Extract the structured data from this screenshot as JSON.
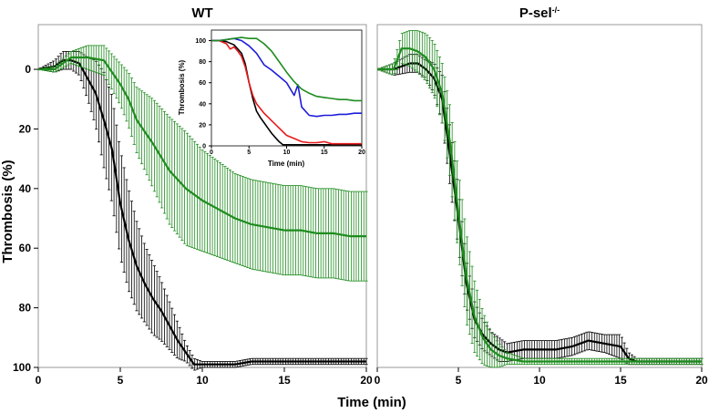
{
  "figure": {
    "ylabel": "Thrombosis (%)",
    "xlabel": "Time (min)"
  },
  "chart_data": [
    {
      "type": "line",
      "title": "WT",
      "xlabel": "Time (min)",
      "ylabel": "Thrombosis (%)",
      "xlim": [
        0,
        20
      ],
      "ylim": [
        100,
        -15
      ],
      "y_inverted": true,
      "xticks": [
        0,
        5,
        10,
        15,
        20
      ],
      "yticks": [
        0,
        20,
        40,
        60,
        80,
        100
      ],
      "series": [
        {
          "name": "black",
          "color": "#000000",
          "x": [
            0,
            1,
            1.5,
            2,
            2.5,
            3,
            3.5,
            4,
            4.5,
            5,
            5.5,
            6,
            6.5,
            7,
            7.5,
            8,
            8.5,
            9,
            9.5,
            10,
            11,
            12,
            13,
            14,
            15,
            16,
            17,
            18,
            19,
            20
          ],
          "y": [
            0,
            -1,
            -3,
            -3,
            -2,
            3,
            8,
            17,
            27,
            45,
            57,
            66,
            72,
            77,
            81,
            86,
            91,
            95,
            99,
            99,
            99,
            99,
            98,
            98,
            98,
            98,
            98,
            98,
            98,
            98
          ],
          "err": [
            0,
            2,
            3,
            3,
            4,
            7,
            11,
            16,
            18,
            18,
            17,
            15,
            13,
            12,
            10,
            8,
            6,
            3,
            2,
            1,
            1,
            1,
            1,
            1,
            1,
            1,
            1,
            1,
            1,
            1
          ]
        },
        {
          "name": "green",
          "color": "#1e8c1e",
          "x": [
            0,
            1,
            2,
            3,
            4,
            5,
            5.5,
            6,
            7,
            8,
            9,
            10,
            11,
            12,
            13,
            14,
            15,
            16,
            17,
            18,
            19,
            20
          ],
          "y": [
            0,
            0,
            -4,
            -4,
            -3,
            5,
            10,
            17,
            25,
            34,
            40,
            44,
            47,
            50,
            52,
            53,
            54,
            54,
            55,
            55,
            56,
            56
          ],
          "err": [
            0,
            1,
            2,
            4,
            5,
            7,
            9,
            11,
            15,
            18,
            19,
            17,
            16,
            15,
            15,
            15,
            15,
            15,
            15,
            15,
            15,
            15
          ]
        }
      ]
    },
    {
      "type": "line",
      "title": "P-sel",
      "title_sup": "-/-",
      "xlabel": "Time (min)",
      "ylabel": "",
      "xlim": [
        0,
        20
      ],
      "ylim": [
        100,
        -15
      ],
      "y_inverted": true,
      "xticks": [
        0,
        5,
        10,
        15,
        20
      ],
      "yticks": [],
      "series": [
        {
          "name": "black",
          "color": "#000000",
          "x": [
            0,
            1,
            2,
            2.5,
            3,
            3.5,
            4,
            4.5,
            5,
            5.5,
            6,
            6.5,
            7,
            7.5,
            8,
            9,
            10,
            11,
            12,
            13,
            14,
            15,
            15.5,
            16,
            17,
            18,
            19,
            20
          ],
          "y": [
            0,
            0,
            -2,
            -2,
            0,
            3,
            10,
            30,
            50,
            72,
            84,
            89,
            92,
            94,
            95,
            94,
            94,
            94,
            93,
            91,
            92,
            93,
            97,
            98,
            98,
            98,
            98,
            98
          ],
          "err": [
            0,
            2,
            3,
            3,
            3,
            5,
            8,
            10,
            10,
            8,
            6,
            5,
            4,
            4,
            3,
            3,
            3,
            3,
            3,
            3,
            3,
            4,
            2,
            1,
            1,
            1,
            1,
            1
          ]
        },
        {
          "name": "green",
          "color": "#1e8c1e",
          "x": [
            0,
            1,
            1.5,
            2,
            2.5,
            3,
            3.5,
            4,
            4.5,
            5,
            5.5,
            6,
            6.5,
            7,
            7.5,
            8,
            9,
            10,
            11,
            12,
            13,
            14,
            15,
            16,
            17,
            18,
            19,
            20
          ],
          "y": [
            0,
            0,
            -7,
            -7,
            -6,
            -4,
            0,
            8,
            25,
            48,
            70,
            83,
            90,
            94,
            96,
            97,
            98,
            98,
            98,
            98,
            98,
            98,
            98,
            98,
            98,
            98,
            98,
            98
          ],
          "err": [
            0,
            2,
            5,
            6,
            7,
            8,
            9,
            10,
            12,
            14,
            15,
            12,
            9,
            6,
            4,
            2,
            1,
            1,
            1,
            1,
            1,
            1,
            1,
            1,
            1,
            1,
            1,
            1
          ]
        }
      ]
    },
    {
      "type": "line",
      "title": "",
      "inset": true,
      "xlabel": "Time (min)",
      "ylabel": "Thrombosis (%)",
      "xlim": [
        0,
        20
      ],
      "ylim": [
        0,
        110
      ],
      "xticks": [
        0,
        5,
        10,
        15,
        20
      ],
      "yticks": [
        0,
        20,
        40,
        60,
        80,
        100
      ],
      "series": [
        {
          "name": "black",
          "color": "#000000",
          "x": [
            0,
            1,
            2,
            3,
            4,
            4.5,
            5,
            5.5,
            6,
            6.5,
            7,
            7.5,
            8,
            8.5,
            9,
            9.5,
            10,
            12,
            14,
            16,
            18,
            20
          ],
          "y": [
            100,
            100,
            99,
            96,
            88,
            78,
            60,
            45,
            33,
            27,
            22,
            17,
            12,
            8,
            4,
            1,
            1,
            1,
            1,
            1,
            1,
            1
          ]
        },
        {
          "name": "red",
          "color": "#e8191c",
          "x": [
            0,
            1,
            2,
            2.5,
            3,
            3.5,
            4,
            4.5,
            5,
            5.5,
            6,
            7,
            8,
            9,
            10,
            11,
            12,
            13,
            14,
            15,
            16,
            17,
            18,
            19,
            20
          ],
          "y": [
            100,
            100,
            97,
            92,
            94,
            90,
            85,
            75,
            60,
            48,
            40,
            31,
            24,
            17,
            10,
            7,
            4,
            3,
            3,
            4,
            2,
            2,
            2,
            2,
            2
          ]
        },
        {
          "name": "blue",
          "color": "#1c1cd9",
          "x": [
            0,
            1,
            2,
            3,
            3.5,
            4,
            5,
            6,
            7,
            8,
            9,
            10,
            11,
            11.5,
            12,
            13,
            14,
            15,
            16,
            17,
            18,
            19,
            20
          ],
          "y": [
            100,
            100,
            101,
            102,
            101,
            100,
            95,
            88,
            77,
            72,
            66,
            60,
            48,
            58,
            37,
            29,
            28,
            29,
            29,
            30,
            30,
            31,
            31
          ]
        },
        {
          "name": "green",
          "color": "#1e8c1e",
          "x": [
            0,
            1,
            2,
            3,
            4,
            5,
            6,
            7,
            8,
            9,
            10,
            11,
            12,
            13,
            14,
            15,
            16,
            17,
            18,
            19,
            20
          ],
          "y": [
            100,
            100,
            101,
            102,
            103,
            102,
            102,
            97,
            90,
            80,
            70,
            61,
            54,
            50,
            47,
            46,
            45,
            44,
            44,
            43,
            43
          ]
        }
      ]
    }
  ]
}
